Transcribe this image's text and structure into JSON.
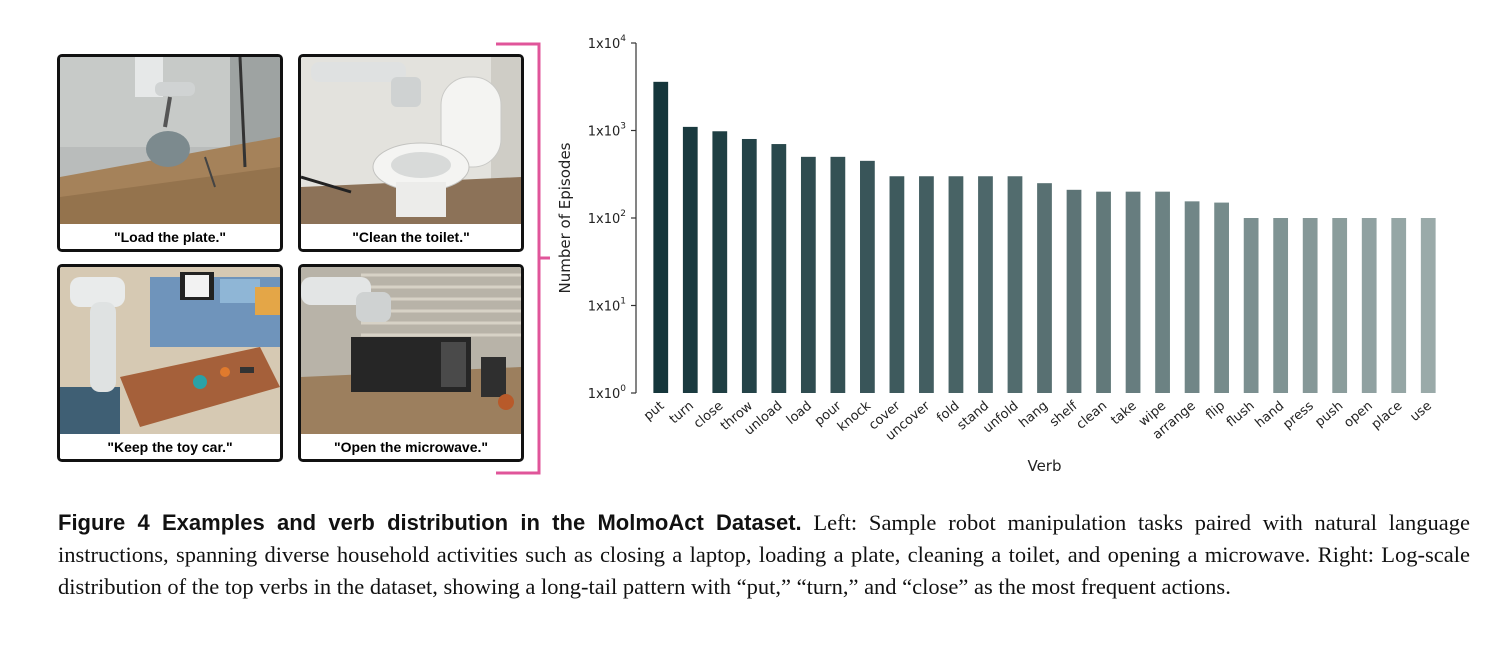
{
  "panels": [
    {
      "caption": "\"Load the plate.\""
    },
    {
      "caption": "\"Clean the toilet.\""
    },
    {
      "caption": "\"Keep the toy car.\""
    },
    {
      "caption": "\"Open the microwave.\""
    }
  ],
  "colors": {
    "bracket": "#e0559a",
    "bar_dark": "#15363b",
    "bar_light": "#9aaaa9"
  },
  "chart_data": {
    "type": "bar",
    "scale": "log",
    "xlabel": "Verb",
    "ylabel": "Number of Episodes",
    "ylim": [
      1,
      10000
    ],
    "y_ticks": [
      {
        "value": 1,
        "label": "1x10",
        "exp": "0"
      },
      {
        "value": 10,
        "label": "1x10",
        "exp": "1"
      },
      {
        "value": 100,
        "label": "1x10",
        "exp": "2"
      },
      {
        "value": 1000,
        "label": "1x10",
        "exp": "3"
      },
      {
        "value": 10000,
        "label": "1x10",
        "exp": "4"
      }
    ],
    "categories": [
      "put",
      "turn",
      "close",
      "throw",
      "unload",
      "load",
      "pour",
      "knock",
      "cover",
      "uncover",
      "fold",
      "stand",
      "unfold",
      "hang",
      "shelf",
      "clean",
      "take",
      "wipe",
      "arrange",
      "flip",
      "flush",
      "hand",
      "press",
      "push",
      "open",
      "place",
      "use"
    ],
    "values": [
      3600,
      1100,
      980,
      800,
      700,
      500,
      500,
      450,
      300,
      300,
      300,
      300,
      300,
      250,
      210,
      200,
      200,
      200,
      155,
      150,
      100,
      100,
      100,
      100,
      100,
      100,
      100
    ]
  },
  "caption": {
    "label": "Figure 4  Examples and verb distribution in the MolmoAct Dataset.",
    "text": " Left: Sample robot manipulation tasks paired with natural language instructions, spanning diverse household activities such as closing a laptop, loading a plate, cleaning a toilet, and opening a microwave. Right: Log-scale distribution of the top verbs in the dataset, showing a long-tail pattern with “put,” “turn,” and “close” as the most frequent actions."
  }
}
